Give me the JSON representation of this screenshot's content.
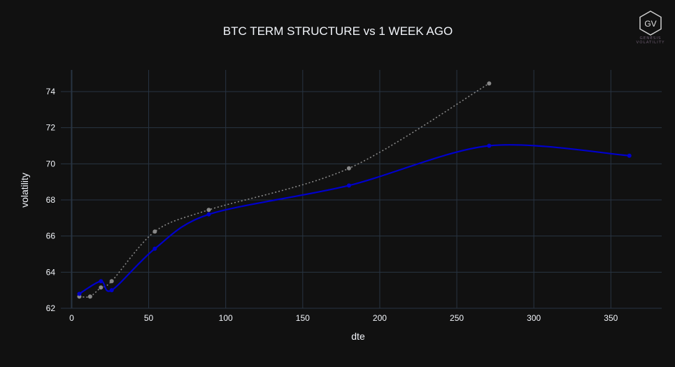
{
  "logo": {
    "initials": "GV",
    "line1": "GENESIS",
    "line2": "VOLATILITY"
  },
  "colors": {
    "background": "#111111",
    "grid": "#283442",
    "text": "#f2f5fa",
    "current": "#0000cc",
    "week_ago": "#888888"
  },
  "chart_data": {
    "type": "line",
    "title": "BTC TERM STRUCTURE vs 1 WEEK AGO",
    "xlabel": "dte",
    "ylabel": "volatility",
    "xlim": [
      -7,
      383
    ],
    "ylim": [
      62,
      75.2
    ],
    "xticks": [
      0,
      50,
      100,
      150,
      200,
      250,
      300,
      350
    ],
    "yticks": [
      62,
      64,
      66,
      68,
      70,
      72,
      74
    ],
    "grid": true,
    "series": [
      {
        "id": "current",
        "style": "solid",
        "color": "#0000cc",
        "x": [
          5,
          19,
          26,
          54,
          89,
          180,
          271,
          362
        ],
        "y": [
          62.8,
          63.5,
          63.0,
          65.3,
          67.2,
          68.8,
          71.0,
          70.45
        ]
      },
      {
        "id": "week_ago",
        "style": "dotted",
        "color": "#888888",
        "x": [
          5,
          12,
          19,
          26,
          54,
          89,
          180,
          271
        ],
        "y": [
          62.65,
          62.65,
          63.15,
          63.5,
          66.25,
          67.45,
          69.75,
          74.45
        ]
      }
    ]
  }
}
